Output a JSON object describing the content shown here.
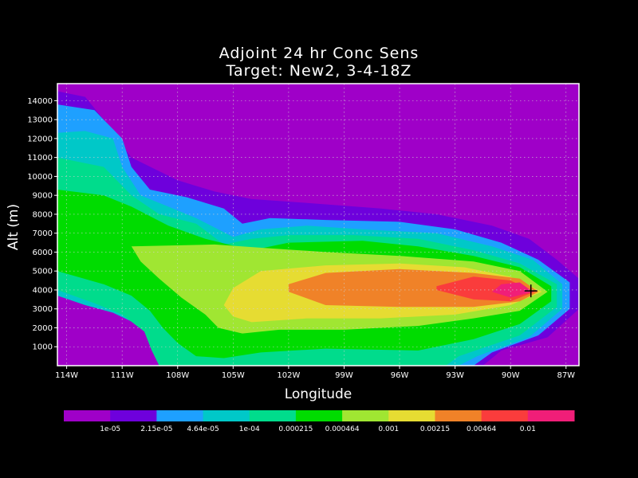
{
  "chart_data": {
    "type": "heatmap",
    "title": "Adjoint 24 hr Conc Sens",
    "subtitle": "Target: New2, 3-4-18Z",
    "xlabel": "Longitude",
    "ylabel": "Alt (m)",
    "x_ticks": [
      "114W",
      "111W",
      "108W",
      "105W",
      "102W",
      "99W",
      "96W",
      "93W",
      "90W",
      "87W"
    ],
    "x_tick_values": [
      -114,
      -111,
      -108,
      -105,
      -102,
      -99,
      -96,
      -93,
      -90,
      -87
    ],
    "xlim": [
      -114.5,
      -86.3
    ],
    "y_ticks": [
      "1000",
      "2000",
      "3000",
      "4000",
      "5000",
      "6000",
      "7000",
      "8000",
      "9000",
      "10000",
      "11000",
      "12000",
      "13000",
      "14000"
    ],
    "y_tick_values": [
      1000,
      2000,
      3000,
      4000,
      5000,
      6000,
      7000,
      8000,
      9000,
      10000,
      11000,
      12000,
      13000,
      14000
    ],
    "ylim": [
      0,
      14900
    ],
    "grid": true,
    "target_marker": {
      "lon": -88.9,
      "alt": 3950
    },
    "levels": [
      "1e-05",
      "2.15e-05",
      "4.64e-05",
      "1e-04",
      "0.000215",
      "0.000464",
      "0.001",
      "0.00215",
      "0.00464",
      "0.01"
    ],
    "colors": [
      "#9f00c8",
      "#6e00dc",
      "#1ea0ff",
      "#00c8c8",
      "#00dc8c",
      "#00dc00",
      "#a0e632",
      "#e6dc32",
      "#f08228",
      "#fa3c3c",
      "#f01e78"
    ],
    "contours": [
      {
        "level": "1e-05",
        "lower_edge": [
          [
            -114.5,
            4200
          ],
          [
            -113,
            4300
          ],
          [
            -111,
            3900
          ],
          [
            -109,
            3000
          ],
          [
            -108,
            2300
          ],
          [
            -107.5,
            1500
          ],
          [
            -107,
            800
          ],
          [
            -106,
            0
          ],
          [
            -91.5,
            0
          ],
          [
            -90.5,
            800
          ],
          [
            -88,
            1500
          ],
          [
            -86.3,
            3000
          ]
        ],
        "upper_edge": [
          [
            -86.3,
            4600
          ],
          [
            -87.5,
            5600
          ],
          [
            -89,
            6700
          ],
          [
            -91,
            7400
          ],
          [
            -94,
            8000
          ],
          [
            -97,
            8300
          ],
          [
            -101,
            8600
          ],
          [
            -104,
            8800
          ],
          [
            -106,
            9200
          ],
          [
            -108,
            9800
          ],
          [
            -110.5,
            11000
          ],
          [
            -112,
            13000
          ],
          [
            -113,
            14200
          ],
          [
            -114.5,
            14500
          ]
        ]
      },
      {
        "level": "2.15e-05",
        "lower_edge": [
          [
            -114.5,
            4000
          ],
          [
            -113,
            3900
          ],
          [
            -111,
            3300
          ],
          [
            -109.5,
            2600
          ],
          [
            -108.5,
            1500
          ],
          [
            -108,
            500
          ],
          [
            -107.5,
            0
          ],
          [
            -92,
            0
          ],
          [
            -91,
            700
          ],
          [
            -88.5,
            1600
          ],
          [
            -86.8,
            3000
          ]
        ],
        "upper_edge": [
          [
            -86.8,
            4400
          ],
          [
            -88.5,
            5600
          ],
          [
            -90.5,
            6500
          ],
          [
            -93,
            7200
          ],
          [
            -96,
            7600
          ],
          [
            -100,
            7700
          ],
          [
            -103,
            7800
          ],
          [
            -104.5,
            7500
          ],
          [
            -105.5,
            8300
          ],
          [
            -107.5,
            8900
          ],
          [
            -109.5,
            9300
          ],
          [
            -110.5,
            10500
          ],
          [
            -111,
            12000
          ],
          [
            -112.5,
            13500
          ],
          [
            -114.5,
            13800
          ]
        ]
      },
      {
        "level": "4.64e-05",
        "lower_edge": [
          [
            -114.5,
            3700
          ],
          [
            -113,
            3200
          ],
          [
            -111.5,
            2800
          ],
          [
            -110,
            2100
          ],
          [
            -108.8,
            1500
          ],
          [
            -108.5,
            0
          ],
          [
            -92.8,
            0
          ],
          [
            -91.8,
            500
          ],
          [
            -89,
            1500
          ],
          [
            -87.2,
            3000
          ]
        ],
        "upper_edge": [
          [
            -87.2,
            4300
          ],
          [
            -88.8,
            5600
          ],
          [
            -91,
            6300
          ],
          [
            -94,
            7000
          ],
          [
            -98,
            7200
          ],
          [
            -101,
            7400
          ],
          [
            -103.5,
            7200
          ],
          [
            -105,
            6800
          ],
          [
            -107,
            7800
          ],
          [
            -108.5,
            8400
          ],
          [
            -110,
            9000
          ],
          [
            -111,
            10500
          ],
          [
            -111.5,
            12000
          ],
          [
            -113,
            12400
          ],
          [
            -114.5,
            12300
          ]
        ]
      },
      {
        "level": "1e-04",
        "lower_edge": [
          [
            -114.5,
            4000
          ],
          [
            -112.5,
            3300
          ],
          [
            -111,
            2700
          ],
          [
            -109.8,
            1800
          ],
          [
            -109.4,
            800
          ],
          [
            -109,
            0
          ],
          [
            -93.5,
            0
          ],
          [
            -92.8,
            500
          ],
          [
            -89.5,
            1600
          ],
          [
            -87.5,
            3100
          ]
        ],
        "upper_edge": [
          [
            -87.5,
            4300
          ],
          [
            -89.5,
            5400
          ],
          [
            -92,
            6100
          ],
          [
            -95,
            6700
          ],
          [
            -98.5,
            6900
          ],
          [
            -102,
            6900
          ],
          [
            -104,
            6700
          ],
          [
            -105.5,
            6400
          ],
          [
            -107,
            7500
          ],
          [
            -109,
            8000
          ],
          [
            -110.5,
            9000
          ],
          [
            -112,
            10500
          ],
          [
            -114.5,
            11000
          ]
        ]
      },
      {
        "level": "0.000215",
        "lower_edge": [
          [
            -114.5,
            5000
          ],
          [
            -112,
            4300
          ],
          [
            -110.5,
            3700
          ],
          [
            -109.5,
            2900
          ],
          [
            -108.8,
            2000
          ],
          [
            -108,
            1200
          ],
          [
            -107,
            500
          ],
          [
            -105.5,
            400
          ],
          [
            -103.5,
            700
          ],
          [
            -100,
            900
          ],
          [
            -95,
            800
          ],
          [
            -92,
            1400
          ],
          [
            -89.5,
            2200
          ],
          [
            -87.8,
            3400
          ]
        ],
        "upper_edge": [
          [
            -87.8,
            4200
          ],
          [
            -89.5,
            5200
          ],
          [
            -92,
            5800
          ],
          [
            -95,
            6300
          ],
          [
            -98,
            6600
          ],
          [
            -102,
            6500
          ],
          [
            -104,
            6100
          ],
          [
            -106.5,
            6700
          ],
          [
            -108.5,
            7400
          ],
          [
            -110.5,
            8400
          ],
          [
            -112,
            9000
          ],
          [
            -114.5,
            9300
          ]
        ]
      },
      {
        "level": "0.000464",
        "lower_edge": [
          [
            -110.5,
            6300
          ],
          [
            -110,
            5500
          ],
          [
            -109,
            4600
          ],
          [
            -107.8,
            3600
          ],
          [
            -106.5,
            2700
          ],
          [
            -105.8,
            2000
          ],
          [
            -104.5,
            1700
          ],
          [
            -102.5,
            1900
          ],
          [
            -99,
            1900
          ],
          [
            -95,
            2100
          ],
          [
            -92,
            2500
          ],
          [
            -89.5,
            2900
          ],
          [
            -88,
            3900
          ]
        ],
        "upper_edge": [
          [
            -88,
            3900
          ],
          [
            -89.5,
            5000
          ],
          [
            -92,
            5500
          ],
          [
            -96,
            5800
          ],
          [
            -100,
            6000
          ],
          [
            -103,
            6200
          ],
          [
            -106,
            6400
          ],
          [
            -110.5,
            6300
          ]
        ]
      },
      {
        "level": "0.001",
        "lower_edge": [
          [
            -105,
            2600
          ],
          [
            -104,
            2300
          ],
          [
            -101,
            2500
          ],
          [
            -97,
            2500
          ],
          [
            -93,
            2700
          ],
          [
            -90,
            3200
          ],
          [
            -88.3,
            3900
          ]
        ],
        "upper_edge": [
          [
            -88.3,
            3900
          ],
          [
            -90,
            4700
          ],
          [
            -92.5,
            5200
          ],
          [
            -96,
            5400
          ],
          [
            -100,
            5300
          ],
          [
            -103.5,
            5000
          ],
          [
            -105,
            4100
          ],
          [
            -105.5,
            3200
          ],
          [
            -105,
            2600
          ]
        ]
      },
      {
        "level": "0.00215",
        "lower_edge": [
          [
            -102,
            3900
          ],
          [
            -100,
            3200
          ],
          [
            -96,
            3100
          ],
          [
            -92,
            3100
          ],
          [
            -89.5,
            3400
          ],
          [
            -88.5,
            3900
          ]
        ],
        "upper_edge": [
          [
            -88.5,
            3900
          ],
          [
            -89.5,
            4600
          ],
          [
            -92,
            4900
          ],
          [
            -96,
            5100
          ],
          [
            -100,
            4900
          ],
          [
            -102,
            4300
          ],
          [
            -102,
            3900
          ]
        ]
      },
      {
        "level": "0.00464",
        "lower_edge": [
          [
            -94,
            4000
          ],
          [
            -92,
            3500
          ],
          [
            -90,
            3400
          ],
          [
            -88.7,
            3900
          ]
        ],
        "upper_edge": [
          [
            -88.7,
            3900
          ],
          [
            -90,
            4500
          ],
          [
            -92,
            4700
          ],
          [
            -94,
            4200
          ],
          [
            -94,
            4000
          ]
        ]
      },
      {
        "level": "0.01",
        "lower_edge": [
          [
            -91,
            3900
          ],
          [
            -90,
            3600
          ],
          [
            -88.8,
            3900
          ]
        ],
        "upper_edge": [
          [
            -88.8,
            3900
          ],
          [
            -89.5,
            4400
          ],
          [
            -90.5,
            4300
          ],
          [
            -91,
            3900
          ]
        ]
      }
    ]
  }
}
